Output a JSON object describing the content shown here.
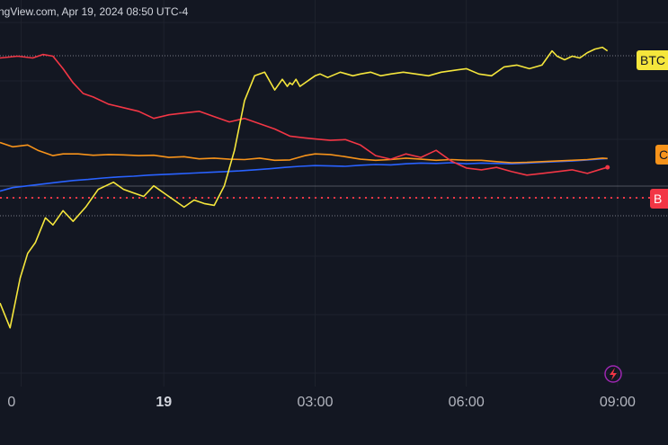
{
  "header": {
    "watermark": "ngView.com, Apr 19, 2024 08:50 UTC-4"
  },
  "colors": {
    "background": "#131722",
    "grid": "#1e222d",
    "btc": "#f5e63c",
    "orange": "#f7931a",
    "blue": "#2962ff",
    "red": "#f23645",
    "axis_text": "#b2b5be"
  },
  "icons": {
    "bottom_right": "lightning-icon"
  },
  "chart_data": {
    "type": "line",
    "title": "",
    "xlabel": "",
    "ylabel": "",
    "x_tick_labels": [
      "0",
      "19",
      "03:00",
      "06:00",
      "09:00"
    ],
    "x_tick_bold": "19",
    "x_range_hours": [
      -3.25,
      10.0
    ],
    "y_range": [
      -6.0,
      4.0
    ],
    "grid": true,
    "legend": "right-edge tags",
    "series": [
      {
        "name": "BTC",
        "tag": "BTC",
        "color": "#f5e63c",
        "x": [
          -3.25,
          -3.05,
          -2.85,
          -2.7,
          -2.55,
          -2.35,
          -2.2,
          -2.0,
          -1.8,
          -1.55,
          -1.3,
          -1.0,
          -0.8,
          -0.6,
          -0.4,
          -0.2,
          0.0,
          0.2,
          0.4,
          0.6,
          0.8,
          1.0,
          1.2,
          1.4,
          1.6,
          1.8,
          2.0,
          2.2,
          2.35,
          2.45,
          2.5,
          2.55,
          2.62,
          2.7,
          2.8,
          2.9,
          3.0,
          3.1,
          3.25,
          3.5,
          3.75,
          3.9,
          4.1,
          4.3,
          4.5,
          4.75,
          5.0,
          5.25,
          5.5,
          5.75,
          6.0,
          6.25,
          6.5,
          6.75,
          7.0,
          7.25,
          7.5,
          7.7,
          7.8,
          7.95,
          8.1,
          8.25,
          8.4,
          8.55,
          8.7,
          8.8
        ],
        "values": [
          -3.9,
          -4.6,
          -3.2,
          -2.5,
          -2.2,
          -1.5,
          -1.7,
          -1.3,
          -1.6,
          -1.2,
          -0.7,
          -0.5,
          -0.7,
          -0.8,
          -0.9,
          -0.6,
          -0.8,
          -1.0,
          -1.2,
          -1.0,
          -1.1,
          -1.15,
          -0.6,
          0.4,
          1.8,
          2.5,
          2.6,
          2.1,
          2.4,
          2.2,
          2.3,
          2.25,
          2.4,
          2.2,
          2.3,
          2.4,
          2.5,
          2.55,
          2.45,
          2.6,
          2.5,
          2.55,
          2.6,
          2.5,
          2.55,
          2.6,
          2.55,
          2.5,
          2.6,
          2.65,
          2.7,
          2.55,
          2.5,
          2.75,
          2.8,
          2.7,
          2.8,
          3.2,
          3.05,
          2.95,
          3.05,
          3.0,
          3.15,
          3.25,
          3.3,
          3.2
        ]
      },
      {
        "name": "",
        "tag": "C",
        "color": "#f7931a",
        "x": [
          -3.25,
          -3.0,
          -2.7,
          -2.5,
          -2.2,
          -2.0,
          -1.7,
          -1.4,
          -1.1,
          -0.8,
          -0.5,
          -0.2,
          0.1,
          0.4,
          0.7,
          1.0,
          1.3,
          1.6,
          1.9,
          2.2,
          2.5,
          2.8,
          3.0,
          3.3,
          3.6,
          3.9,
          4.2,
          4.5,
          4.8,
          5.1,
          5.4,
          5.7,
          6.0,
          6.3,
          6.6,
          6.9,
          7.2,
          7.5,
          7.8,
          8.1,
          8.4,
          8.7,
          8.8
        ],
        "values": [
          0.62,
          0.5,
          0.55,
          0.4,
          0.25,
          0.3,
          0.3,
          0.26,
          0.28,
          0.27,
          0.25,
          0.26,
          0.2,
          0.22,
          0.16,
          0.18,
          0.15,
          0.14,
          0.18,
          0.12,
          0.13,
          0.25,
          0.3,
          0.28,
          0.22,
          0.15,
          0.12,
          0.14,
          0.18,
          0.15,
          0.12,
          0.14,
          0.12,
          0.12,
          0.08,
          0.05,
          0.06,
          0.08,
          0.1,
          0.12,
          0.14,
          0.18,
          0.17
        ]
      },
      {
        "name": "",
        "tag": "",
        "color": "#2962ff",
        "x": [
          -3.25,
          -3.0,
          -2.7,
          -2.4,
          -2.1,
          -1.8,
          -1.5,
          -1.2,
          -0.9,
          -0.6,
          -0.3,
          0.0,
          0.3,
          0.6,
          0.9,
          1.2,
          1.5,
          1.8,
          2.1,
          2.4,
          2.7,
          3.0,
          3.3,
          3.6,
          3.9,
          4.2,
          4.5,
          4.8,
          5.1,
          5.4,
          5.7,
          6.0,
          6.3,
          6.6,
          6.9,
          7.2,
          7.5,
          7.8,
          8.1,
          8.4,
          8.7,
          8.8
        ],
        "values": [
          -0.75,
          -0.65,
          -0.6,
          -0.55,
          -0.5,
          -0.45,
          -0.42,
          -0.38,
          -0.35,
          -0.33,
          -0.3,
          -0.28,
          -0.26,
          -0.24,
          -0.22,
          -0.2,
          -0.18,
          -0.15,
          -0.12,
          -0.08,
          -0.05,
          -0.03,
          -0.04,
          -0.05,
          -0.02,
          0.0,
          -0.01,
          0.02,
          0.04,
          0.03,
          0.05,
          0.02,
          0.04,
          0.03,
          0.02,
          0.04,
          0.06,
          0.08,
          0.1,
          0.13,
          0.16,
          0.17
        ]
      },
      {
        "name": "",
        "tag": "B",
        "color": "#f23645",
        "x": [
          -3.25,
          -2.9,
          -2.6,
          -2.4,
          -2.2,
          -2.0,
          -1.8,
          -1.6,
          -1.4,
          -1.1,
          -0.8,
          -0.5,
          -0.2,
          0.1,
          0.4,
          0.7,
          1.0,
          1.3,
          1.6,
          1.9,
          2.2,
          2.5,
          2.8,
          3.0,
          3.3,
          3.6,
          3.9,
          4.2,
          4.5,
          4.8,
          5.1,
          5.4,
          5.7,
          6.0,
          6.3,
          6.6,
          6.9,
          7.2,
          7.5,
          7.8,
          8.1,
          8.4,
          8.7,
          8.8
        ],
        "values": [
          3.0,
          3.05,
          3.0,
          3.1,
          3.05,
          2.7,
          2.3,
          2.0,
          1.9,
          1.7,
          1.6,
          1.5,
          1.3,
          1.4,
          1.45,
          1.5,
          1.35,
          1.2,
          1.3,
          1.15,
          1.0,
          0.8,
          0.75,
          0.72,
          0.68,
          0.7,
          0.55,
          0.25,
          0.15,
          0.3,
          0.2,
          0.4,
          0.1,
          -0.1,
          -0.15,
          -0.08,
          -0.2,
          -0.3,
          -0.25,
          -0.2,
          -0.15,
          -0.25,
          -0.12,
          -0.08
        ]
      }
    ]
  }
}
